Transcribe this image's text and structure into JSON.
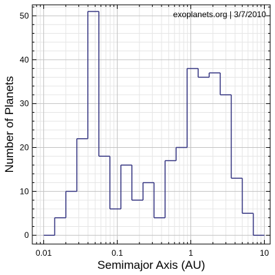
{
  "chart_data": {
    "type": "histogram",
    "title": "",
    "annotation": "exoplanets.org | 3/7/2010",
    "xlabel": "Semimajor Axis (AU)",
    "ylabel": "Number of Planets",
    "xscale": "log",
    "xlim": [
      0.007,
      12
    ],
    "ylim": [
      -2,
      52.5
    ],
    "xticks": [
      0.01,
      0.1,
      1,
      10
    ],
    "xtick_labels": [
      "0.01",
      "0.1",
      "1",
      "10"
    ],
    "yticks": [
      0,
      10,
      20,
      30,
      40,
      50
    ],
    "ytick_labels": [
      "0",
      "10",
      "20",
      "30",
      "40",
      "50"
    ],
    "grid": true,
    "line_color": "#3b3b85",
    "bin_edges": [
      0.01,
      0.0141,
      0.02,
      0.0282,
      0.0398,
      0.0562,
      0.0794,
      0.112,
      0.158,
      0.224,
      0.316,
      0.447,
      0.631,
      0.891,
      1.259,
      1.778,
      2.512,
      3.548,
      5.012,
      7.079
    ],
    "counts": [
      0,
      4,
      10,
      22,
      51,
      18,
      6,
      16,
      8,
      12,
      4,
      17,
      20,
      38,
      36,
      37,
      32,
      13,
      5,
      0
    ]
  }
}
